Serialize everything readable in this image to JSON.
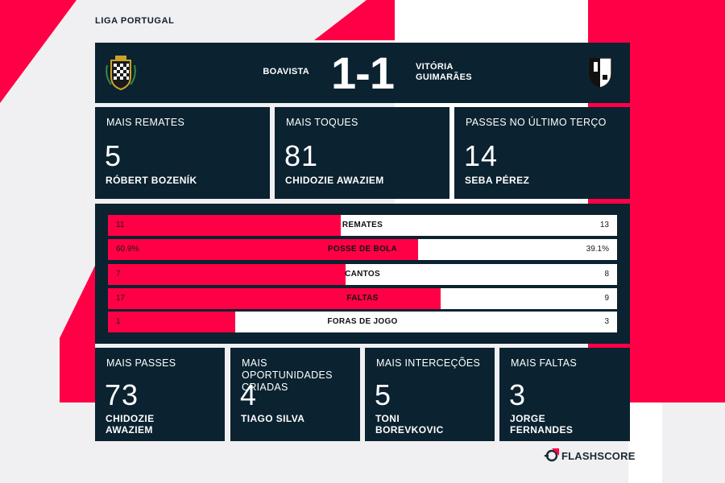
{
  "league": "LIGA PORTUGAL",
  "match": {
    "home_team": "BOAVISTA",
    "score": "1-1",
    "away_team_line1": "VITÓRIA",
    "away_team_line2": "GUIMARÃES"
  },
  "top_cards": [
    {
      "label": "MAIS REMATES",
      "value": "5",
      "player": "RÓBERT BOZENÍK"
    },
    {
      "label": "MAIS TOQUES",
      "value": "81",
      "player": "CHIDOZIE AWAZIEM"
    },
    {
      "label": "PASSES NO ÚLTIMO TERÇO",
      "value": "14",
      "player": "SEBA PÉREZ"
    }
  ],
  "comparison": [
    {
      "label": "REMATES",
      "home": "11",
      "away": "13",
      "home_share": 0.458
    },
    {
      "label": "POSSE DE BOLA",
      "home": "60.9%",
      "away": "39.1%",
      "home_share": 0.609
    },
    {
      "label": "CANTOS",
      "home": "7",
      "away": "8",
      "home_share": 0.467
    },
    {
      "label": "FALTAS",
      "home": "17",
      "away": "9",
      "home_share": 0.654
    },
    {
      "label": "FORAS DE JOGO",
      "home": "1",
      "away": "3",
      "home_share": 0.25
    }
  ],
  "bottom_cards": [
    {
      "label_line1": "MAIS PASSES",
      "label_line2": "",
      "value": "73",
      "player_line1": "CHIDOZIE",
      "player_line2": "AWAZIEM"
    },
    {
      "label_line1": "MAIS OPORTUNIDADES",
      "label_line2": "CRIADAS",
      "value": "4",
      "player_line1": "TIAGO SILVA",
      "player_line2": ""
    },
    {
      "label_line1": "MAIS INTERCEÇÕES",
      "label_line2": "",
      "value": "5",
      "player_line1": "TONI",
      "player_line2": "BOREVKOVIC"
    },
    {
      "label_line1": "MAIS FALTAS",
      "label_line2": "",
      "value": "3",
      "player_line1": "JORGE",
      "player_line2": "FERNANDES"
    }
  ],
  "brand": "FLASHSCORE",
  "colors": {
    "accent": "#ff0046",
    "panel": "#0b2230",
    "background": "#f0f0f2"
  },
  "icons": {
    "home_crest": "boavista-crest-icon",
    "away_crest": "vitoria-guimaraes-crest-icon",
    "brand_logo": "flashscore-logo-icon"
  }
}
